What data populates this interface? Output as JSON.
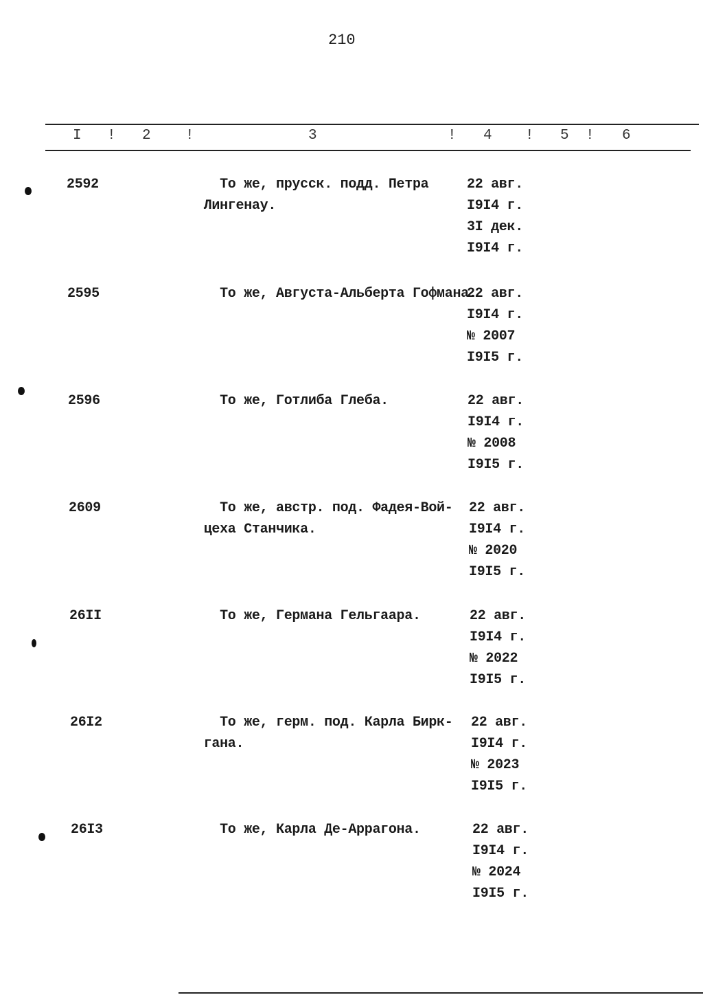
{
  "page_number": "210",
  "header": {
    "columns": [
      "I",
      "2",
      "3",
      "4",
      "5",
      "6"
    ],
    "separator": "!"
  },
  "entries": [
    {
      "number": "2592",
      "description": [
        "   То же, прусск. подд. Петра",
        " Лингенау."
      ],
      "dates": [
        "22 авг.",
        "I9I4 г.",
        "3I дек.",
        "I9I4 г."
      ]
    },
    {
      "number": "2595",
      "description": [
        "   То же, Августа-Альберта Гофмана."
      ],
      "dates": [
        "22 авг.",
        "I9I4 г.",
        "№ 2007",
        "I9I5 г."
      ]
    },
    {
      "number": "2596",
      "description": [
        "   То же, Готлиба Глеба."
      ],
      "dates": [
        "22 авг.",
        "I9I4 г.",
        "№ 2008",
        "I9I5 г."
      ]
    },
    {
      "number": "2609",
      "description": [
        "   То же, австр. под. Фадея-Вой-",
        " цеха Станчика."
      ],
      "dates": [
        "22 авг.",
        "I9I4 г.",
        "№ 2020",
        "I9I5 г."
      ]
    },
    {
      "number": "26II",
      "description": [
        "   То же, Германа Гельгаара."
      ],
      "dates": [
        "22 авг.",
        "I9I4 г.",
        "№ 2022",
        "I9I5 г."
      ]
    },
    {
      "number": "26I2",
      "description": [
        "   То же, герм. под. Карла Бирк-",
        " гана."
      ],
      "dates": [
        "22 авг.",
        "I9I4 г.",
        "№ 2023",
        "I9I5 г."
      ]
    },
    {
      "number": "26I3",
      "description": [
        "   То же, Карла Де-Аррагона."
      ],
      "dates": [
        "22 авг.",
        "I9I4 г.",
        "№ 2024",
        "I9I5 г."
      ]
    }
  ]
}
